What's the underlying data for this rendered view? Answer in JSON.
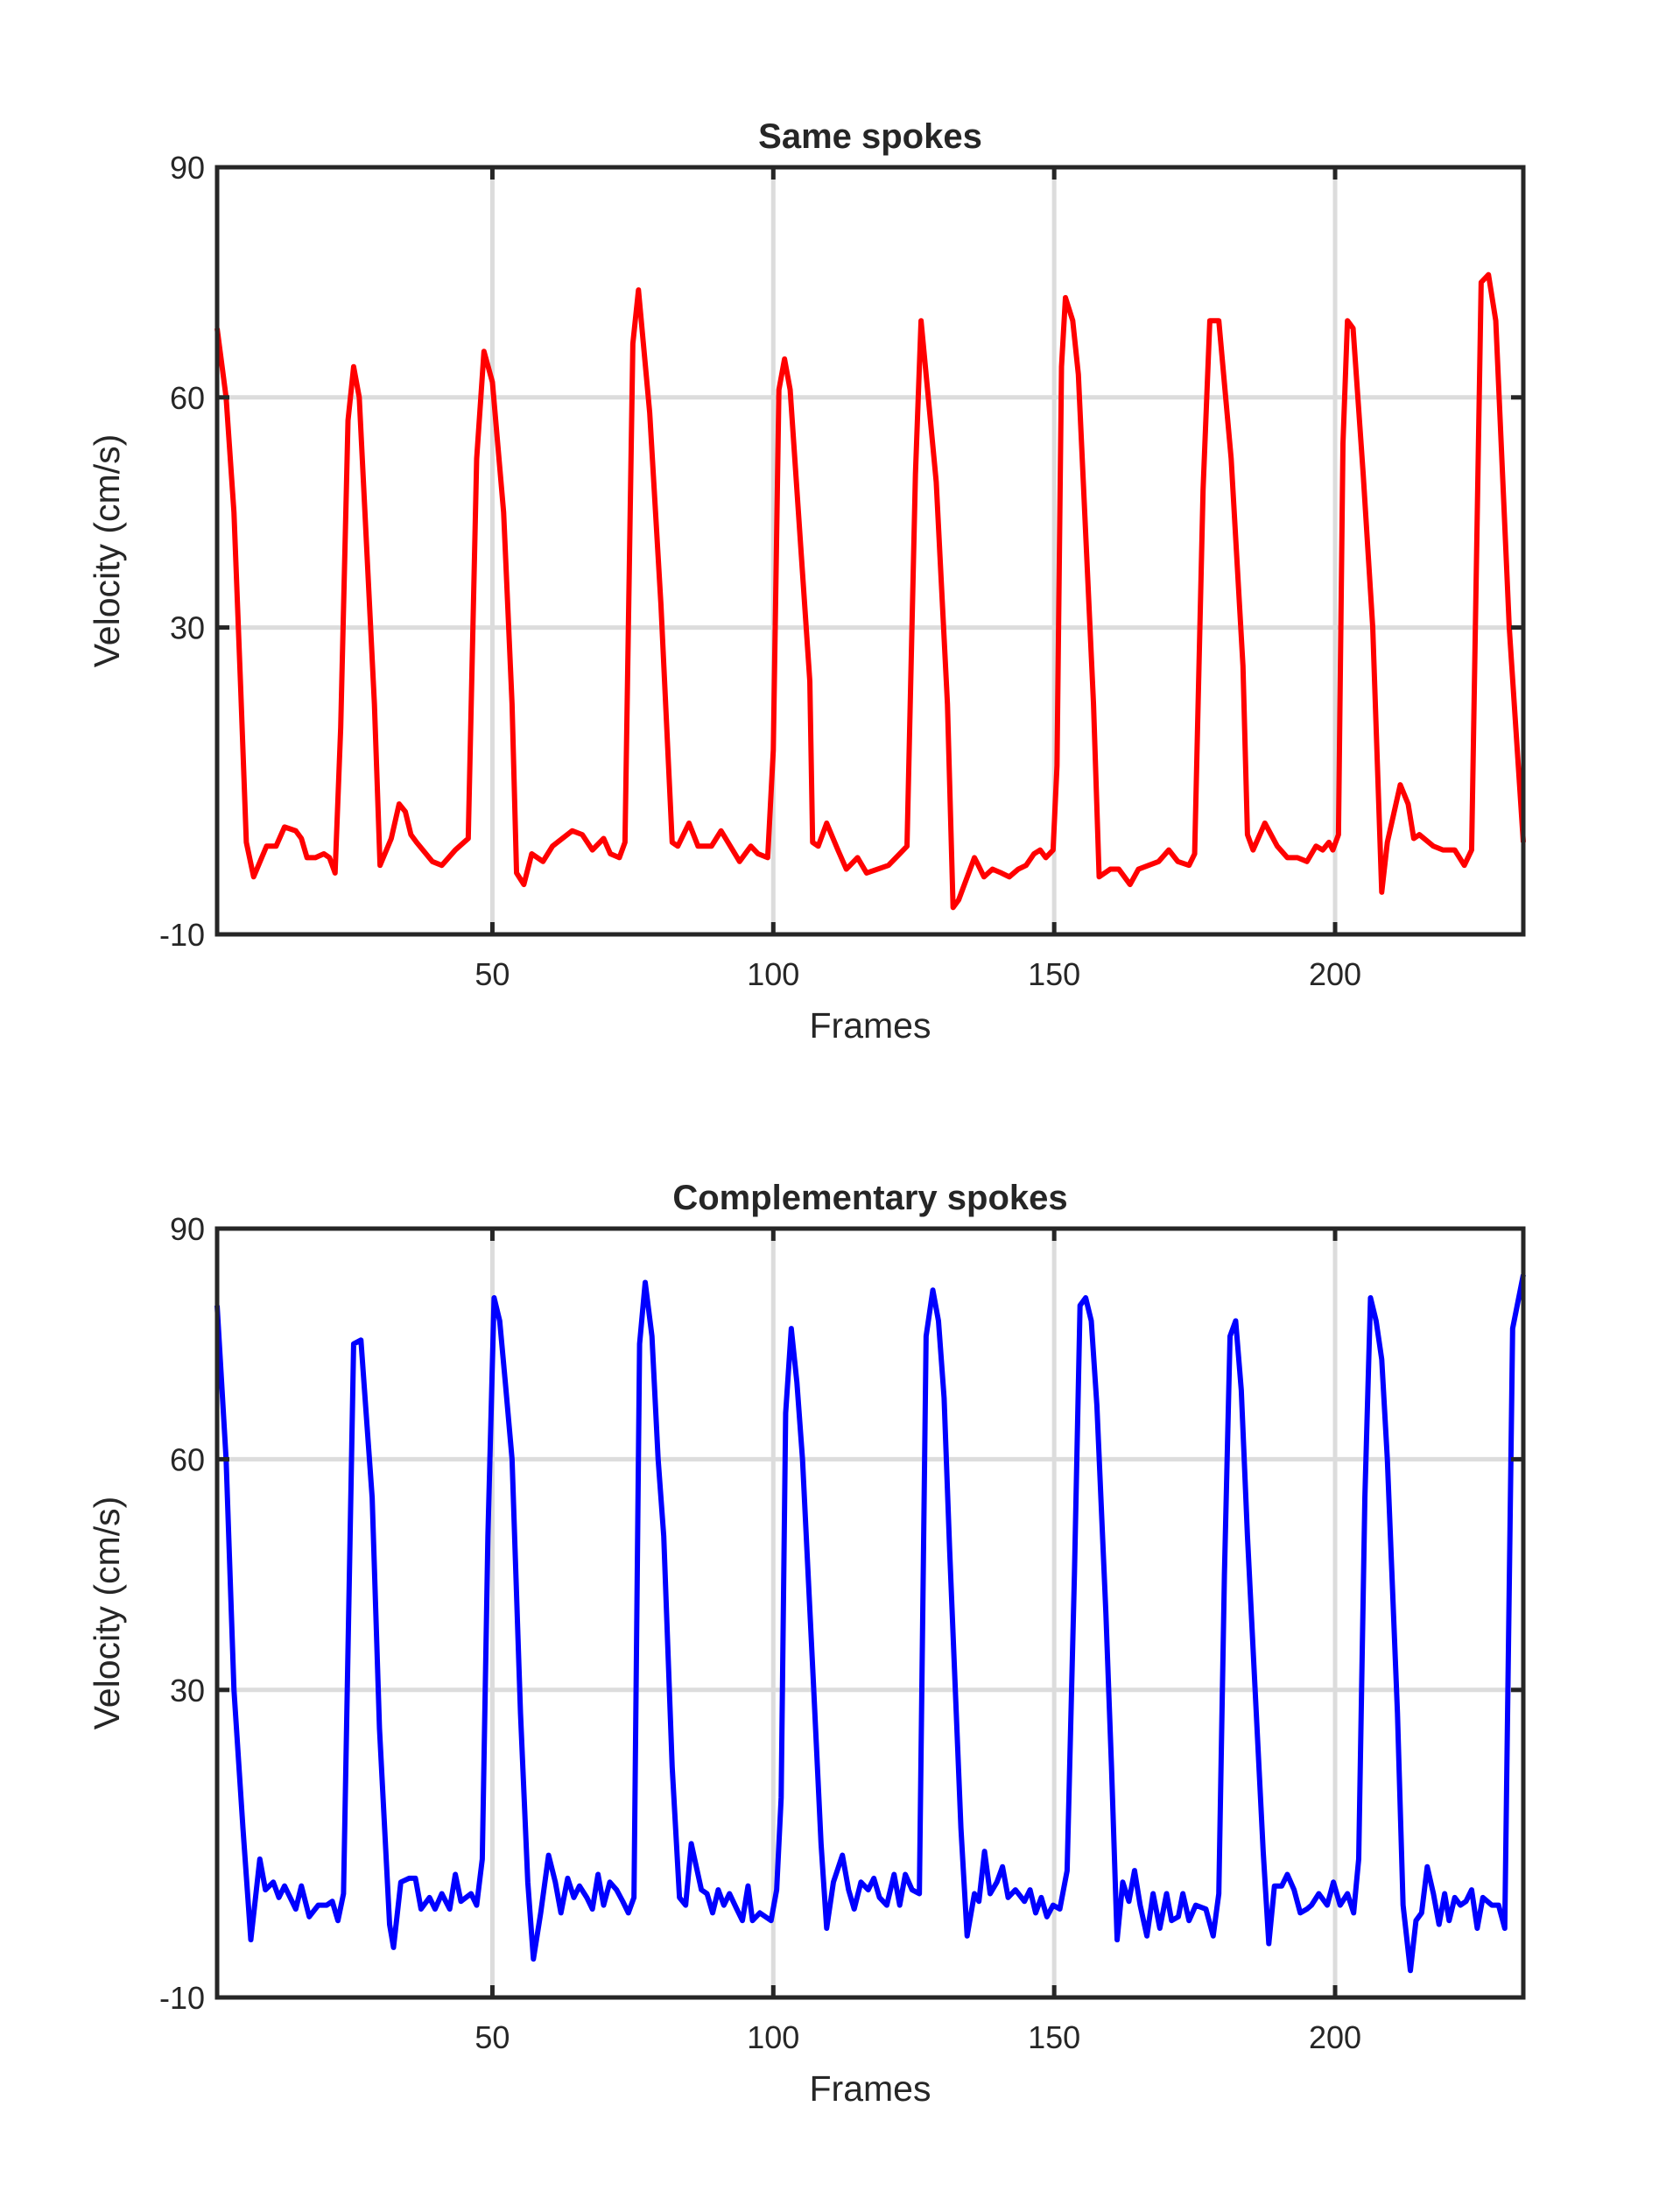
{
  "chart_data": [
    {
      "type": "line",
      "title": "Same spokes",
      "xlabel": "Frames",
      "ylabel": "Velocity (cm/s)",
      "color": "#ff0000",
      "xlim": [
        1,
        233.5
      ],
      "xticks": [
        50,
        100,
        150,
        200
      ],
      "ylim": [
        -10,
        90
      ],
      "yticks": [
        -10,
        30,
        60,
        90
      ],
      "grid": true,
      "x": [
        1,
        2.6,
        4,
        5.2,
        6.2,
        7.5,
        9.8,
        11.5,
        13,
        15,
        16,
        17,
        18.5,
        20,
        21,
        22,
        23,
        24.3,
        25.3,
        26.3,
        29,
        30,
        32,
        33.4,
        34.5,
        35.5,
        36.5,
        39.3,
        41,
        43.4,
        45.7,
        47.2,
        48.5,
        50,
        52,
        53.5,
        54.3,
        55.6,
        57,
        59,
        60.7,
        64.2,
        66,
        67.8,
        69.8,
        71,
        72.6,
        73.6,
        75,
        76,
        78,
        80,
        82,
        83,
        85,
        86.6,
        89,
        90.7,
        94,
        96,
        97.3,
        99,
        100,
        101,
        102,
        103,
        106.5,
        107,
        108,
        109.5,
        111.5,
        113,
        115,
        116.6,
        120.5,
        122.5,
        123.8,
        125.3,
        126.3,
        129,
        131,
        132,
        133,
        135.8,
        136.5,
        137.5,
        139,
        140.6,
        142,
        143.6,
        145,
        146.4,
        147.5,
        148.5,
        149.8,
        150.5,
        151.3,
        152,
        153.3,
        154.3,
        157,
        158,
        160,
        161.5,
        163.5,
        165,
        168.6,
        170.4,
        172,
        174,
        175,
        176.5,
        177.7,
        179.3,
        181.5,
        183.6,
        184.4,
        185.4,
        187.5,
        189.7,
        191.5,
        193.3,
        195,
        196.6,
        197.8,
        198.9,
        199.6,
        200.6,
        201.4,
        202.2,
        203.2,
        205,
        206.7,
        208.3,
        209.3,
        211.6,
        213,
        214,
        215,
        217.5,
        219.2,
        221.3,
        223,
        224.3,
        226,
        227.3,
        228.6,
        231,
        233.5
      ],
      "values": [
        69,
        60,
        45,
        22,
        2,
        -2.5,
        1.5,
        1.5,
        4,
        3.5,
        2.5,
        0,
        0,
        0.5,
        0,
        -2,
        17,
        57,
        64,
        60,
        20,
        -1,
        2.5,
        7,
        6,
        3,
        2,
        -0.5,
        -1,
        1,
        2.5,
        52,
        66,
        62,
        45,
        20,
        -2,
        -3.5,
        0.5,
        -0.5,
        1.5,
        3.5,
        3,
        1,
        2.5,
        0.5,
        0,
        2,
        67,
        74,
        58,
        33,
        2,
        1.5,
        4.5,
        1.5,
        1.5,
        3.5,
        -0.5,
        1.5,
        0.5,
        0,
        14,
        61,
        65,
        61,
        23,
        2,
        1.5,
        4.5,
        1,
        -1.5,
        0,
        -2,
        -1,
        0.5,
        1.5,
        50,
        70,
        49,
        20,
        -6.5,
        -5.5,
        0,
        -1,
        -2.5,
        -1.5,
        -2,
        -2.5,
        -1.5,
        -1,
        0.5,
        1,
        0,
        1,
        12,
        64,
        73,
        70,
        63,
        20,
        -2.5,
        -1.5,
        -1.5,
        -3.5,
        -1.5,
        -0.5,
        1,
        -0.5,
        -1,
        0.5,
        48,
        70,
        70,
        52,
        25,
        3,
        1,
        4.5,
        1.5,
        0,
        0,
        -0.5,
        1.5,
        1,
        2,
        1,
        3,
        54,
        70,
        69,
        50,
        30,
        -4.5,
        2,
        9.5,
        7,
        2.5,
        3,
        1.5,
        1,
        1,
        -1,
        1,
        75,
        76,
        70,
        30,
        2
      ]
    },
    {
      "type": "line",
      "title": "Complementary spokes",
      "xlabel": "Frames",
      "ylabel": "Velocity (cm/s)",
      "color": "#0000ff",
      "xlim": [
        1,
        233.5
      ],
      "xticks": [
        50,
        100,
        150,
        200
      ],
      "ylim": [
        -10,
        90
      ],
      "yticks": [
        -10,
        30,
        60,
        90
      ],
      "grid": true,
      "x": [
        1,
        2.6,
        4,
        5.6,
        7,
        8.6,
        9.6,
        11,
        12,
        13,
        15,
        16,
        17.4,
        19,
        20.5,
        21.5,
        22.5,
        23.5,
        25.3,
        26.6,
        28.6,
        29.9,
        31.7,
        32.4,
        33.7,
        35.2,
        36.3,
        37.3,
        38.8,
        39.8,
        41,
        42.4,
        43.4,
        44.4,
        46.2,
        47.2,
        48.2,
        49.2,
        50.3,
        51.3,
        52.3,
        53.5,
        55,
        56.3,
        57.3,
        58.6,
        60,
        61.2,
        62.2,
        63.4,
        64.5,
        65.5,
        66.8,
        67.8,
        68.8,
        69.8,
        70.9,
        72.1,
        73.2,
        74.2,
        75.2,
        76.2,
        77.2,
        78.4,
        79.5,
        80.5,
        82,
        83.3,
        84.4,
        85.4,
        87.2,
        88.2,
        89.2,
        90.2,
        91.2,
        92.2,
        93.5,
        94.5,
        95.5,
        96.3,
        97.6,
        99.6,
        100.6,
        101.4,
        102.2,
        103.2,
        104.2,
        105.2,
        107.2,
        108.5,
        109.5,
        110.7,
        112.3,
        113.4,
        114.4,
        115.6,
        116.9,
        117.9,
        118.9,
        120.2,
        121.5,
        122.5,
        123.5,
        124.7,
        126,
        127.2,
        128.4,
        129.4,
        130.4,
        131.4,
        133.4,
        134.5,
        135.8,
        136.6,
        137.6,
        138.6,
        139.8,
        140.8,
        141.8,
        143.1,
        144.7,
        145.7,
        146.7,
        147.7,
        148.7,
        149.8,
        151,
        152.3,
        153.6,
        154.6,
        155.6,
        156.6,
        157.6,
        159.2,
        160.2,
        161.2,
        162.2,
        163.3,
        164.3,
        165.3,
        166.5,
        167.6,
        168.8,
        170,
        170.9,
        172.1,
        172.9,
        174,
        175.2,
        177,
        178.3,
        179.3,
        180.3,
        181.3,
        182.3,
        183.3,
        184.4,
        185.9,
        187.2,
        188.2,
        189.2,
        190.5,
        191.5,
        192.7,
        193.8,
        195,
        195.8,
        197.1,
        198.6,
        199.7,
        200.9,
        202.2,
        203.3,
        204.2,
        205.3,
        206.3,
        207.3,
        208.3,
        209.3,
        211.1,
        212.1,
        213.4,
        214.4,
        215.4,
        216.4,
        217.5,
        218.5,
        219.5,
        220.3,
        221.3,
        222.3,
        223.3,
        224.3,
        225.3,
        226.3,
        227.9,
        229.1,
        230.2,
        231.6,
        233.5
      ],
      "values": [
        80,
        60,
        30,
        12,
        -2.5,
        8,
        4,
        5,
        3,
        4.5,
        1.5,
        4.5,
        0.5,
        2,
        2,
        2.5,
        0,
        3.5,
        75,
        75.5,
        55,
        25,
        -0.5,
        -3.5,
        5,
        5.5,
        5.5,
        1.5,
        3,
        1.5,
        3.5,
        1.5,
        6,
        2.5,
        3.5,
        2,
        8,
        50,
        81,
        78,
        70,
        60,
        27,
        5,
        -5,
        1,
        8.5,
        5,
        1,
        5.5,
        3,
        4.5,
        3,
        1.5,
        6,
        2,
        5,
        4,
        2.5,
        1,
        3,
        75,
        83,
        76,
        60,
        50,
        20,
        3,
        2,
        10,
        4,
        3.5,
        1,
        4,
        2,
        3.5,
        1.5,
        0,
        4.5,
        0,
        1,
        0,
        4,
        16,
        66,
        77,
        70,
        60,
        30,
        10,
        -1,
        5,
        8.5,
        4,
        1.5,
        5,
        4,
        5.5,
        3,
        2,
        6,
        2,
        6,
        4,
        3.5,
        76,
        82,
        78,
        68,
        48,
        12,
        -2,
        3.5,
        2.5,
        9,
        3.5,
        5,
        7,
        3,
        4,
        2.5,
        4,
        1,
        3,
        0.5,
        2,
        1.5,
        6.5,
        45,
        80,
        81,
        78,
        67,
        40,
        20,
        -2.5,
        5,
        2.5,
        6.5,
        2,
        -2,
        3.5,
        -1,
        3.5,
        0,
        0.5,
        3.5,
        0,
        2,
        1.5,
        -2,
        3.5,
        45,
        76,
        78,
        69,
        50,
        28,
        9,
        -3,
        4.5,
        4.5,
        6,
        4,
        1,
        1.5,
        2,
        3.5,
        2,
        5,
        2,
        3.5,
        1,
        8,
        55,
        81,
        78,
        73,
        60,
        27,
        2,
        -6.5,
        0,
        1,
        7,
        3.5,
        -0.5,
        3.5,
        0,
        3,
        2,
        2.5,
        4,
        -1,
        3,
        2,
        2,
        -1,
        77,
        84
      ]
    }
  ]
}
